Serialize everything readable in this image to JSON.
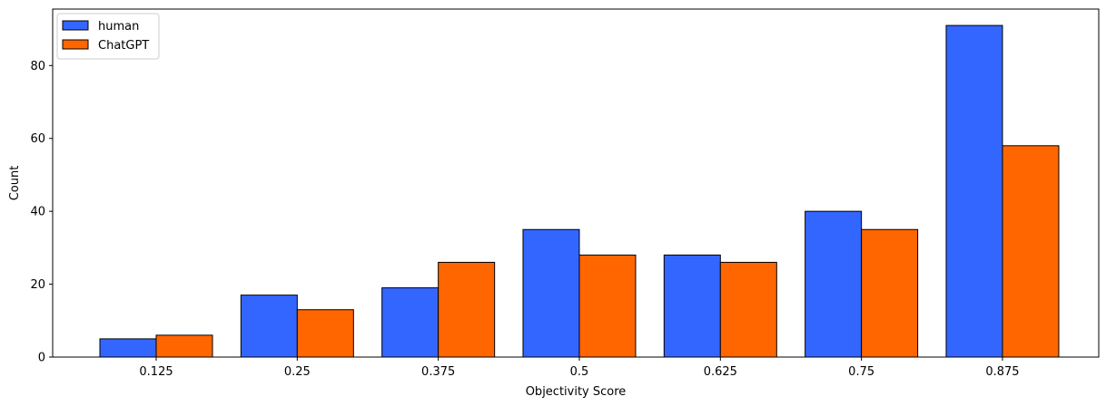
{
  "chart_data": {
    "type": "bar",
    "title": "",
    "xlabel": "Objectivity Score",
    "ylabel": "Count",
    "categories": [
      "0.125",
      "0.25",
      "0.375",
      "0.5",
      "0.625",
      "0.75",
      "0.875"
    ],
    "series": [
      {
        "name": "human",
        "color": "#3366ff",
        "values": [
          5,
          17,
          19,
          35,
          28,
          40,
          91
        ]
      },
      {
        "name": "ChatGPT",
        "color": "#ff6600",
        "values": [
          6,
          13,
          26,
          28,
          26,
          35,
          58
        ]
      }
    ],
    "ylim": [
      0,
      95.5
    ],
    "yticks": [
      0,
      20,
      40,
      60,
      80
    ],
    "legend": "upper-left",
    "grid": false
  }
}
